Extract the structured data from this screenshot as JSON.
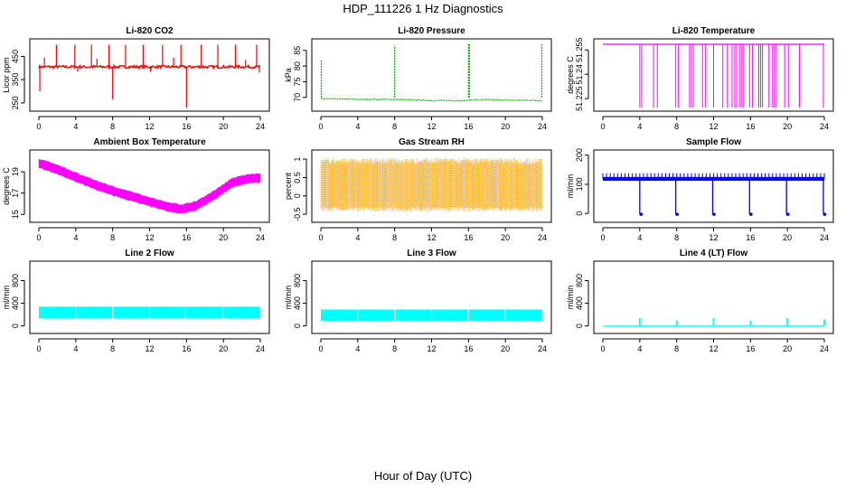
{
  "figure": {
    "title": "HDP_111226  1 Hz Diagnostics",
    "xlabel": "Hour of Day (UTC)"
  },
  "chart_data": [
    {
      "type": "line",
      "id": "co2",
      "title": "Li-820 CO2",
      "ylabel": "Licor ppm",
      "color": "#ff0000",
      "xlim": [
        0,
        24
      ],
      "ylim": [
        230,
        510
      ],
      "xticks": [
        0,
        4,
        8,
        12,
        16,
        20,
        24
      ],
      "yticks": [
        250,
        350,
        450
      ],
      "series": [
        {
          "name": "CO2",
          "baseline": 405,
          "noise": 6,
          "spikes_up": [
            [
              1.9,
              500
            ],
            [
              3.9,
              500
            ],
            [
              5.7,
              500
            ],
            [
              7.6,
              500
            ],
            [
              9.4,
              500
            ],
            [
              11.3,
              500
            ],
            [
              13.4,
              500
            ],
            [
              15.4,
              500
            ],
            [
              17.6,
              500
            ],
            [
              19.4,
              500
            ],
            [
              21.3,
              500
            ],
            [
              23.6,
              500
            ],
            [
              0.6,
              445
            ],
            [
              6.3,
              440
            ],
            [
              14.6,
              445
            ],
            [
              22.4,
              435
            ]
          ],
          "spikes_down": [
            [
              0.1,
              300
            ],
            [
              8.0,
              265
            ],
            [
              16.0,
              230
            ],
            [
              23.9,
              380
            ],
            [
              12.1,
              385
            ],
            [
              4.2,
              385
            ]
          ]
        }
      ]
    },
    {
      "type": "line",
      "id": "pressure",
      "title": "Li-820 Pressure",
      "ylabel": "kPa",
      "color": "#00c000",
      "xlim": [
        0,
        24
      ],
      "ylim": [
        66.8,
        87.5
      ],
      "xticks": [
        0,
        4,
        8,
        12,
        16,
        20,
        24
      ],
      "yticks": [
        70,
        75,
        80,
        85
      ],
      "series": [
        {
          "name": "Pressure",
          "points": [
            [
              0,
              69.6
            ],
            [
              4,
              69.4
            ],
            [
              7.9,
              69.4
            ],
            [
              8.1,
              69.4
            ],
            [
              12,
              69.0
            ],
            [
              15.9,
              69.0
            ],
            [
              16.1,
              69.3
            ],
            [
              20,
              69.2
            ],
            [
              23.9,
              69.0
            ]
          ],
          "noise": 0.3,
          "spikes_up": [
            [
              0.05,
              82
            ],
            [
              8.0,
              86.5
            ],
            [
              16.0,
              87
            ],
            [
              16.1,
              87
            ],
            [
              23.95,
              87
            ]
          ]
        }
      ]
    },
    {
      "type": "line",
      "id": "licor_temp",
      "title": "Li-820 Temperature",
      "ylabel": "degrees C",
      "color": "#ff00ff",
      "xlim": [
        0,
        24
      ],
      "ylim": [
        51.2195,
        51.2596
      ],
      "xticks": [
        0,
        4,
        8,
        12,
        16,
        20,
        24
      ],
      "yticks": [
        51.225,
        51.24,
        51.255
      ],
      "series": [
        {
          "name": "Temperature",
          "level": 51.2585,
          "low": 51.2195,
          "drops": [
            4.0,
            4.2,
            5.5,
            5.9,
            7.9,
            8.2,
            9.4,
            9.6,
            9.8,
            10.8,
            11.1,
            12.0,
            13.0,
            13.5,
            14.0,
            14.3,
            14.5,
            14.8,
            15.0,
            15.2,
            15.9,
            16.2,
            16.9,
            17.1,
            17.3,
            18.0,
            18.4,
            18.6,
            18.8,
            19.7,
            20.1,
            21.3,
            23.9
          ]
        }
      ]
    },
    {
      "type": "line",
      "id": "ambient",
      "title": "Ambient Box Temperature",
      "ylabel": "degrees C",
      "color": "#ff00ff",
      "xlim": [
        0,
        24
      ],
      "ylim": [
        14.6,
        20.7
      ],
      "xticks": [
        0,
        4,
        8,
        12,
        16,
        20,
        24
      ],
      "yticks": [
        15,
        17,
        19
      ],
      "series": [
        {
          "name": "Ambient",
          "points": [
            [
              0,
              19.8
            ],
            [
              2,
              19.2
            ],
            [
              4,
              18.5
            ],
            [
              6,
              17.8
            ],
            [
              8,
              17.2
            ],
            [
              10,
              16.7
            ],
            [
              12,
              16.2
            ],
            [
              14,
              15.7
            ],
            [
              15.5,
              15.5
            ],
            [
              17,
              15.8
            ],
            [
              19,
              16.8
            ],
            [
              21,
              18.0
            ],
            [
              23,
              18.4
            ],
            [
              24,
              18.4
            ]
          ],
          "band": 0.35
        }
      ]
    },
    {
      "type": "line",
      "id": "rh",
      "title": "Gas Stream RH",
      "ylabel": "percent",
      "color": "#ffa500",
      "xlim": [
        0,
        24
      ],
      "ylim": [
        -0.62,
        1.15
      ],
      "xticks": [
        0,
        4,
        8,
        12,
        16,
        20,
        24
      ],
      "yticks": [
        -0.5,
        0.0,
        0.5,
        1.0
      ],
      "series": [
        {
          "name": "RH",
          "low": -0.35,
          "high": 0.95
        }
      ]
    },
    {
      "type": "line",
      "id": "sample_flow",
      "title": "Sample Flow",
      "ylabel": "ml/min",
      "color": "#0000ff",
      "xlim": [
        0,
        24
      ],
      "ylim": [
        -18,
        205
      ],
      "xticks": [
        0,
        4,
        8,
        12,
        16,
        20,
        24
      ],
      "yticks": [
        0,
        100,
        200
      ],
      "series": [
        {
          "name": "Sample Flow",
          "baseline": 118,
          "upper": 135,
          "drops": [
            4.0,
            7.9,
            11.9,
            15.9,
            19.9,
            23.9
          ],
          "drop_to": -3
        }
      ]
    },
    {
      "type": "line",
      "id": "line2",
      "title": "Line 2 Flow",
      "ylabel": "ml/min",
      "color": "#00ffff",
      "xlim": [
        0,
        24
      ],
      "ylim": [
        -70,
        1080
      ],
      "xticks": [
        0,
        4,
        8,
        12,
        16,
        20,
        24
      ],
      "yticks": [
        0,
        400,
        800
      ],
      "series": [
        {
          "name": "Line 2",
          "low": 130,
          "high": 340,
          "gaps": [
            4.0,
            8.0,
            12.0,
            15.9,
            20.0,
            24.0
          ]
        }
      ]
    },
    {
      "type": "line",
      "id": "line3",
      "title": "Line 3 Flow",
      "ylabel": "ml/min",
      "color": "#00ffff",
      "xlim": [
        0,
        24
      ],
      "ylim": [
        -70,
        1080
      ],
      "xticks": [
        0,
        4,
        8,
        12,
        16,
        20,
        24
      ],
      "yticks": [
        0,
        400,
        800
      ],
      "series": [
        {
          "name": "Line 3",
          "low": 90,
          "high": 290,
          "gaps": [
            4.0,
            8.0,
            12.0,
            16.0,
            20.0,
            24.0
          ]
        }
      ]
    },
    {
      "type": "line",
      "id": "line4",
      "title": "Line 4 (LT) Flow",
      "ylabel": "ml/min",
      "color": "#00ffff",
      "xlim": [
        0,
        24
      ],
      "ylim": [
        -70,
        1080
      ],
      "xticks": [
        0,
        4,
        8,
        12,
        16,
        20,
        24
      ],
      "yticks": [
        0,
        400,
        800
      ],
      "series": [
        {
          "name": "Line 4",
          "baseline": 0,
          "spikes_up": [
            [
              4.0,
              140
            ],
            [
              8.0,
              100
            ],
            [
              12.0,
              140
            ],
            [
              16.0,
              90
            ],
            [
              20.0,
              140
            ],
            [
              24.0,
              110
            ]
          ]
        }
      ]
    }
  ]
}
